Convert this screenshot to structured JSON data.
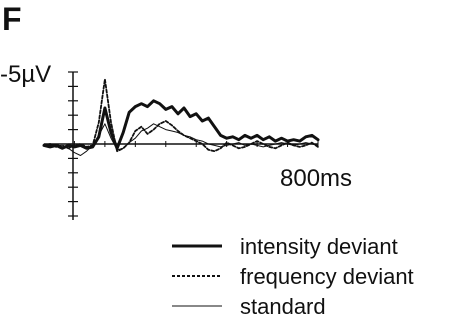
{
  "chart_data": {
    "type": "line",
    "panel_label": "F",
    "y_axis_label": "-5µV",
    "x_axis_label": "800ms",
    "x_unit": "ms",
    "y_unit": "µV",
    "xlim": [
      -100,
      800
    ],
    "ylim": [
      -5,
      5
    ],
    "y_inverted": true,
    "legend_position": "bottom-right",
    "series": [
      {
        "name": "intensity deviant",
        "style": "thick-solid",
        "x": [
          -100,
          -80,
          -60,
          -40,
          -20,
          0,
          20,
          40,
          60,
          80,
          100,
          120,
          140,
          160,
          180,
          200,
          220,
          240,
          260,
          280,
          300,
          320,
          340,
          360,
          380,
          400,
          420,
          440,
          460,
          480,
          500,
          520,
          540,
          560,
          580,
          600,
          620,
          640,
          660,
          680,
          700,
          720,
          740,
          760,
          780,
          800
        ],
        "y": [
          0.1,
          0.2,
          0.1,
          0.3,
          0.1,
          0.2,
          0.1,
          0.3,
          0.2,
          -0.5,
          -2.5,
          -0.8,
          0.3,
          -0.8,
          -2.2,
          -2.6,
          -2.8,
          -2.6,
          -3.0,
          -2.8,
          -2.4,
          -2.6,
          -2.1,
          -2.5,
          -1.9,
          -2.1,
          -1.6,
          -1.8,
          -1.2,
          -0.6,
          -0.4,
          -0.5,
          -0.3,
          -0.6,
          -0.4,
          -0.6,
          -0.3,
          -0.5,
          -0.2,
          -0.4,
          -0.2,
          -0.3,
          -0.2,
          -0.5,
          -0.6,
          -0.3
        ]
      },
      {
        "name": "frequency deviant",
        "style": "dotted",
        "x": [
          -100,
          -80,
          -60,
          -40,
          -20,
          0,
          20,
          40,
          60,
          80,
          100,
          120,
          140,
          160,
          180,
          200,
          220,
          240,
          260,
          280,
          300,
          320,
          340,
          360,
          380,
          400,
          420,
          440,
          460,
          480,
          500,
          520,
          540,
          560,
          580,
          600,
          620,
          640,
          660,
          680,
          700,
          720,
          740,
          760,
          780,
          800
        ],
        "y": [
          0.1,
          0.0,
          0.2,
          0.1,
          0.3,
          0.1,
          0.0,
          0.2,
          0.1,
          -1.5,
          -4.5,
          -1.5,
          0.5,
          0.3,
          -0.1,
          -0.9,
          -1.2,
          -0.7,
          -1.0,
          -1.4,
          -1.6,
          -1.3,
          -0.9,
          -0.6,
          -0.4,
          -0.2,
          0.0,
          0.4,
          0.5,
          0.3,
          -0.1,
          0.1,
          0.3,
          0.2,
          0.0,
          -0.2,
          0.0,
          0.2,
          0.3,
          0.1,
          -0.1,
          0.1,
          0.2,
          0.1,
          -0.1,
          0.2
        ]
      },
      {
        "name": "standard",
        "style": "thin-solid",
        "x": [
          -100,
          -80,
          -60,
          -40,
          -20,
          0,
          20,
          40,
          60,
          80,
          100,
          120,
          140,
          160,
          180,
          200,
          220,
          240,
          260,
          280,
          300,
          320,
          340,
          360,
          380,
          400,
          420,
          440,
          460,
          480,
          500,
          520,
          540,
          560,
          580,
          600,
          620,
          640,
          660,
          680,
          700,
          720,
          740,
          760,
          780,
          800
        ],
        "y": [
          0.0,
          0.1,
          0.0,
          0.2,
          0.3,
          0.6,
          0.8,
          0.5,
          0.1,
          -0.6,
          -1.4,
          -0.4,
          0.4,
          0.3,
          -0.1,
          -0.4,
          -0.9,
          -1.1,
          -1.4,
          -1.2,
          -1.0,
          -0.9,
          -0.8,
          -0.6,
          -0.5,
          -0.3,
          -0.2,
          0.0,
          0.1,
          0.2,
          0.1,
          0.0,
          -0.1,
          0.1,
          0.0,
          0.1,
          0.2,
          0.1,
          0.0,
          -0.1,
          0.0,
          0.1,
          0.0,
          -0.1,
          0.0,
          0.1
        ]
      }
    ]
  }
}
